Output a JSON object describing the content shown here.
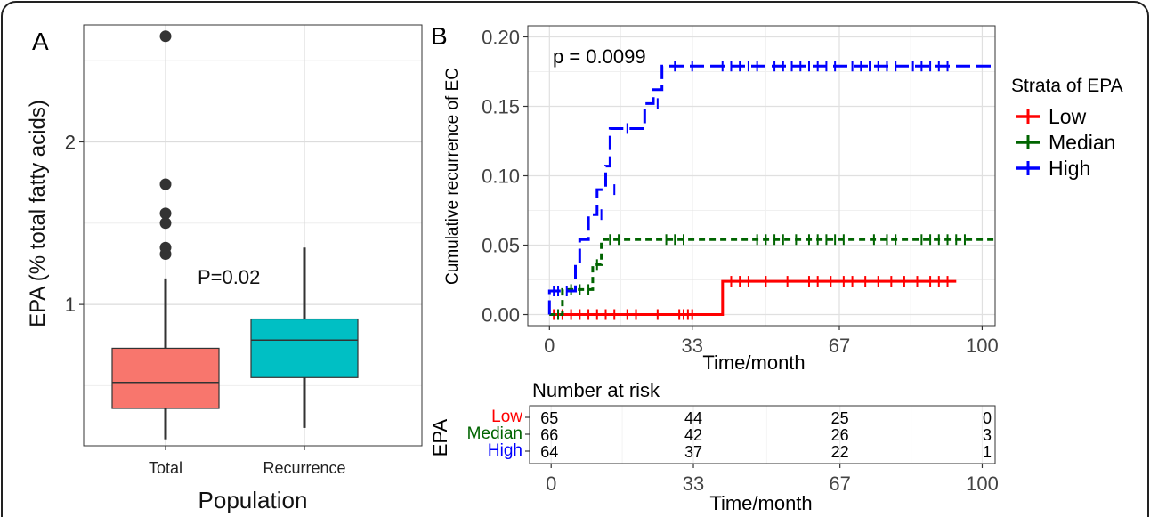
{
  "chart_data": [
    {
      "type": "box",
      "panel_label": "A",
      "xlabel": "Population",
      "ylabel": "EPA (% total fatty acids)",
      "categories": [
        "Total",
        "Recurrence"
      ],
      "y_ticks": [
        1,
        2
      ],
      "ylim": [
        0.13,
        2.72
      ],
      "grid": true,
      "annotation": "P=0.02",
      "boxes": [
        {
          "name": "Total",
          "whisker_low": 0.17,
          "q1": 0.36,
          "median": 0.52,
          "q3": 0.73,
          "whisker_high": 1.16,
          "outliers": [
            1.31,
            1.35,
            1.5,
            1.56,
            1.74,
            2.65
          ],
          "color": "#F8766D"
        },
        {
          "name": "Recurrence",
          "whisker_low": 0.24,
          "q1": 0.55,
          "median": 0.78,
          "q3": 0.91,
          "whisker_high": 1.35,
          "outliers": [],
          "color": "#00BFC4"
        }
      ]
    },
    {
      "type": "step",
      "panel_label": "B",
      "xlabel": "Time/month",
      "ylabel": "Cumulative recurrence of EC",
      "x_ticks": [
        0,
        33,
        67,
        100
      ],
      "y_ticks": [
        "0.00",
        "0.05",
        "0.10",
        "0.15",
        "0.20"
      ],
      "xlim": [
        -5,
        103
      ],
      "ylim": [
        -0.008,
        0.208
      ],
      "grid": true,
      "annotation": "p = 0.0099",
      "legend_title": "Strata of EPA",
      "legend_position": "right",
      "series": [
        {
          "name": "Low",
          "color": "#FF0000",
          "dash": "solid",
          "steps": [
            [
              0,
              0.0
            ],
            [
              40,
              0.0
            ],
            [
              40,
              0.024
            ],
            [
              94,
              0.024
            ]
          ],
          "censors": [
            [
              1,
              0.0
            ],
            [
              3,
              0.0
            ],
            [
              5,
              0.0
            ],
            [
              7,
              0.0
            ],
            [
              9,
              0.0
            ],
            [
              11,
              0.0
            ],
            [
              13,
              0.0
            ],
            [
              15,
              0.0
            ],
            [
              18,
              0.0
            ],
            [
              20,
              0.0
            ],
            [
              25,
              0.0
            ],
            [
              30,
              0.0
            ],
            [
              31,
              0.0
            ],
            [
              32,
              0.0
            ],
            [
              33,
              0.0
            ],
            [
              42,
              0.024
            ],
            [
              44,
              0.024
            ],
            [
              46,
              0.024
            ],
            [
              50,
              0.024
            ],
            [
              55,
              0.024
            ],
            [
              60,
              0.024
            ],
            [
              62,
              0.024
            ],
            [
              65,
              0.024
            ],
            [
              68,
              0.024
            ],
            [
              70,
              0.024
            ],
            [
              73,
              0.024
            ],
            [
              76,
              0.024
            ],
            [
              79,
              0.024
            ],
            [
              82,
              0.024
            ],
            [
              85,
              0.024
            ],
            [
              88,
              0.024
            ],
            [
              90,
              0.024
            ],
            [
              92,
              0.024
            ]
          ]
        },
        {
          "name": "Median",
          "color": "#006400",
          "dash": "short",
          "steps": [
            [
              0,
              0.0
            ],
            [
              3,
              0.0
            ],
            [
              3,
              0.018
            ],
            [
              10,
              0.018
            ],
            [
              10,
              0.036
            ],
            [
              12,
              0.036
            ],
            [
              12,
              0.054
            ],
            [
              103,
              0.054
            ]
          ],
          "censors": [
            [
              2,
              0.0
            ],
            [
              5,
              0.018
            ],
            [
              7,
              0.018
            ],
            [
              9,
              0.018
            ],
            [
              11,
              0.036
            ],
            [
              14,
              0.054
            ],
            [
              16,
              0.054
            ],
            [
              27,
              0.054
            ],
            [
              29,
              0.054
            ],
            [
              31,
              0.054
            ],
            [
              48,
              0.054
            ],
            [
              50,
              0.054
            ],
            [
              52,
              0.054
            ],
            [
              54,
              0.054
            ],
            [
              57,
              0.054
            ],
            [
              60,
              0.054
            ],
            [
              62,
              0.054
            ],
            [
              64,
              0.054
            ],
            [
              66,
              0.054
            ],
            [
              68,
              0.054
            ],
            [
              75,
              0.054
            ],
            [
              78,
              0.054
            ],
            [
              80,
              0.054
            ],
            [
              86,
              0.054
            ],
            [
              88,
              0.054
            ],
            [
              90,
              0.054
            ],
            [
              92,
              0.054
            ],
            [
              94,
              0.054
            ],
            [
              96,
              0.054
            ]
          ]
        },
        {
          "name": "High",
          "color": "#0000FF",
          "dash": "long",
          "steps": [
            [
              0,
              0.0
            ],
            [
              0,
              0.017
            ],
            [
              6,
              0.017
            ],
            [
              6,
              0.036
            ],
            [
              7,
              0.036
            ],
            [
              7,
              0.054
            ],
            [
              9,
              0.054
            ],
            [
              9,
              0.072
            ],
            [
              11,
              0.072
            ],
            [
              11,
              0.09
            ],
            [
              13,
              0.09
            ],
            [
              13,
              0.107
            ],
            [
              14,
              0.107
            ],
            [
              14,
              0.134
            ],
            [
              22,
              0.134
            ],
            [
              22,
              0.152
            ],
            [
              24,
              0.152
            ],
            [
              24,
              0.162
            ],
            [
              26,
              0.162
            ],
            [
              26,
              0.179
            ],
            [
              103,
              0.179
            ]
          ],
          "censors": [
            [
              1,
              0.017
            ],
            [
              2,
              0.017
            ],
            [
              4,
              0.017
            ],
            [
              12,
              0.072
            ],
            [
              15,
              0.09
            ],
            [
              18,
              0.134
            ],
            [
              25,
              0.152
            ],
            [
              29,
              0.179
            ],
            [
              33,
              0.179
            ],
            [
              40,
              0.179
            ],
            [
              42,
              0.179
            ],
            [
              44,
              0.179
            ],
            [
              46,
              0.179
            ],
            [
              48,
              0.179
            ],
            [
              52,
              0.179
            ],
            [
              54,
              0.179
            ],
            [
              56,
              0.179
            ],
            [
              58,
              0.179
            ],
            [
              60,
              0.179
            ],
            [
              62,
              0.179
            ],
            [
              64,
              0.179
            ],
            [
              66,
              0.179
            ],
            [
              70,
              0.179
            ],
            [
              72,
              0.179
            ],
            [
              74,
              0.179
            ],
            [
              76,
              0.179
            ],
            [
              78,
              0.179
            ],
            [
              80,
              0.179
            ],
            [
              84,
              0.179
            ],
            [
              86,
              0.179
            ],
            [
              88,
              0.179
            ],
            [
              90,
              0.179
            ],
            [
              92,
              0.179
            ]
          ]
        }
      ]
    },
    {
      "type": "table",
      "title": "Number at risk",
      "xlabel": "Time/month",
      "ylabel": "EPA",
      "x_ticks": [
        0,
        33,
        67,
        100
      ],
      "rows": [
        {
          "name": "Low",
          "color": "#FF0000",
          "values": [
            65,
            44,
            25,
            0
          ]
        },
        {
          "name": "Median",
          "color": "#006400",
          "values": [
            66,
            42,
            26,
            3
          ]
        },
        {
          "name": "High",
          "color": "#0000FF",
          "values": [
            64,
            37,
            22,
            1
          ]
        }
      ]
    }
  ]
}
